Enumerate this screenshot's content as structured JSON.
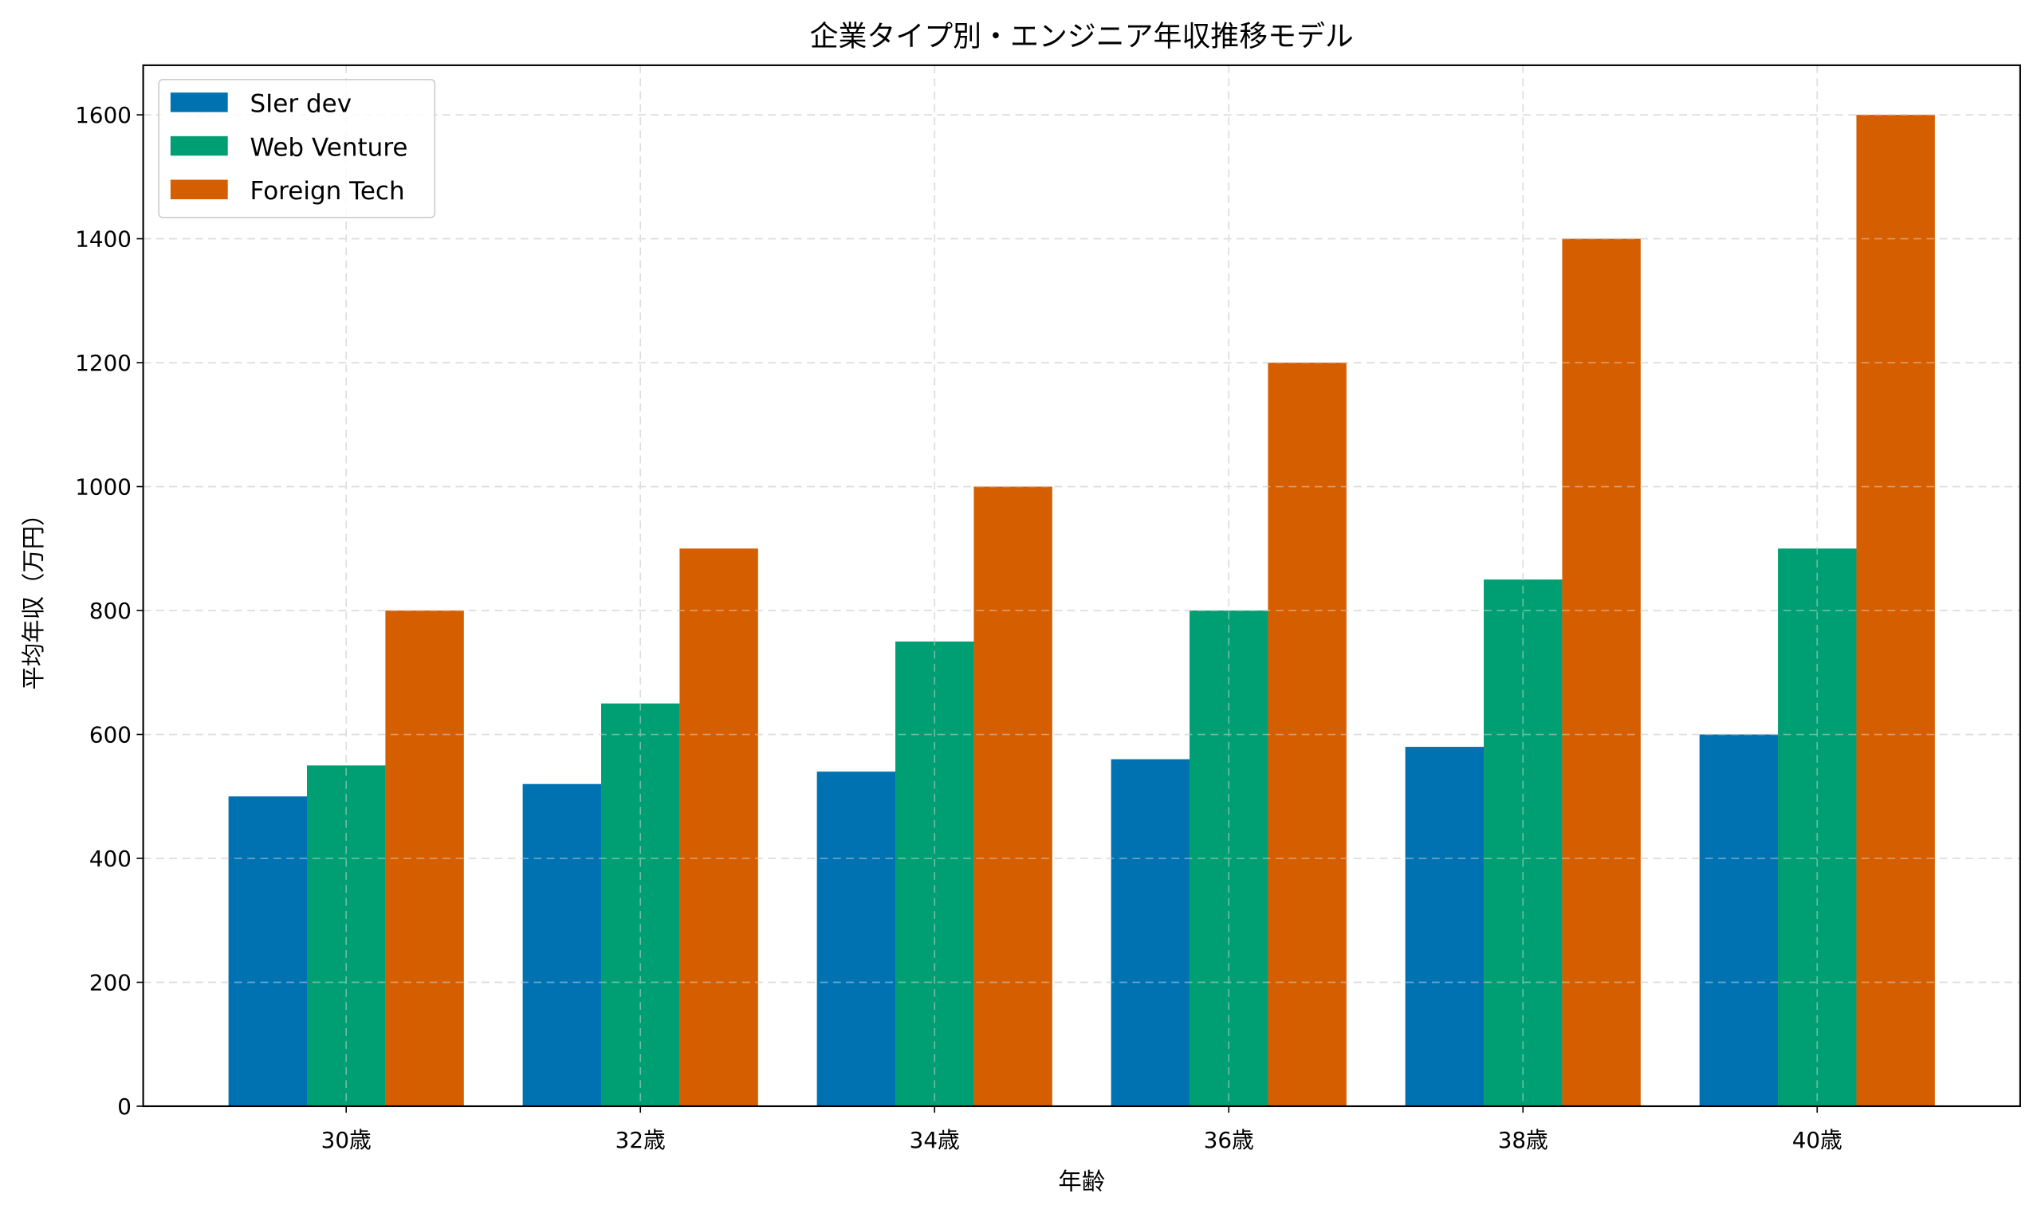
{
  "chart_data": {
    "type": "bar",
    "title": "企業タイプ別・エンジニア年収推移モデル",
    "xlabel": "年齢",
    "ylabel": "平均年収（万円）",
    "categories": [
      "30歳",
      "32歳",
      "34歳",
      "36歳",
      "38歳",
      "40歳"
    ],
    "series": [
      {
        "name": "SIer dev",
        "color": "#0072b2",
        "values": [
          500,
          520,
          540,
          560,
          580,
          600
        ]
      },
      {
        "name": "Web Venture",
        "color": "#009e73",
        "values": [
          550,
          650,
          750,
          800,
          850,
          900
        ]
      },
      {
        "name": "Foreign Tech",
        "color": "#d55e00",
        "values": [
          800,
          900,
          1000,
          1200,
          1400,
          1600
        ]
      }
    ],
    "ylim": [
      0,
      1680
    ],
    "yticks": [
      0,
      200,
      400,
      600,
      800,
      1000,
      1200,
      1400,
      1600
    ],
    "grid": true,
    "legend": "top-left"
  }
}
